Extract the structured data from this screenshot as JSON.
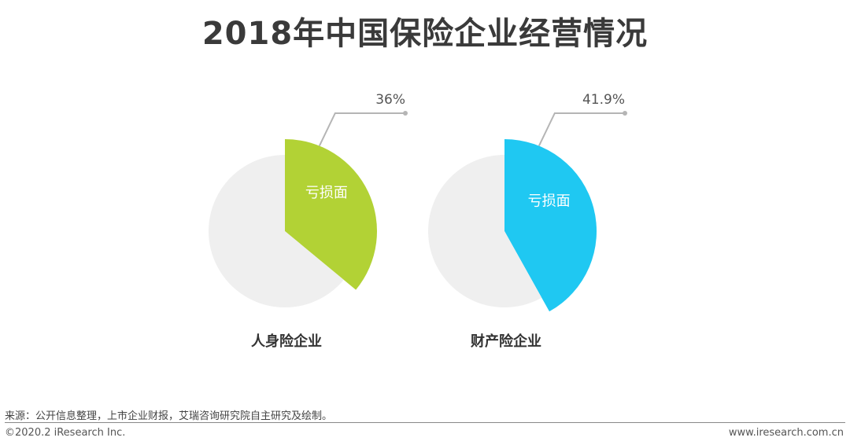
{
  "title": "2018年中国保险企业经营情况",
  "chart_data": [
    {
      "type": "pie",
      "title": "人身险企业",
      "slices": [
        {
          "label": "亏损面",
          "value": 36,
          "value_label": "36%",
          "color": "#b2d235",
          "highlight": true
        },
        {
          "label": "",
          "value": 64,
          "color": "#efefef",
          "highlight": false
        }
      ]
    },
    {
      "type": "pie",
      "title": "财产险企业",
      "slices": [
        {
          "label": "亏损面",
          "value": 41.9,
          "value_label": "41.9%",
          "color": "#1fc8f2",
          "highlight": true
        },
        {
          "label": "",
          "value": 58.1,
          "color": "#efefef",
          "highlight": false
        }
      ]
    }
  ],
  "footer": {
    "source": "来源：公开信息整理，上市企业财报，艾瑞咨询研究院自主研究及绘制。",
    "copyright": "©2020.2  iResearch Inc.",
    "website": "www.iresearch.com.cn"
  }
}
